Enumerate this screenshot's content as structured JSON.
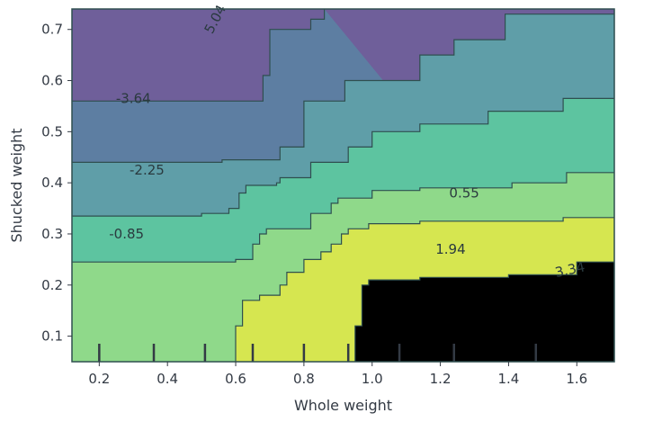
{
  "chart_data": {
    "type": "contour",
    "title": "",
    "xlabel": "Whole weight",
    "ylabel": "Shucked weight",
    "xlim": [
      0.12,
      1.71
    ],
    "ylim": [
      0.05,
      0.74
    ],
    "x_ticks": [
      0.2,
      0.4,
      0.6,
      0.8,
      1.0,
      1.2,
      1.4,
      1.6
    ],
    "x_tick_labels": [
      "0.2",
      "0.4",
      "0.6",
      "0.8",
      "1.0",
      "1.2",
      "1.4",
      "1.6"
    ],
    "y_ticks": [
      0.1,
      0.2,
      0.3,
      0.4,
      0.5,
      0.6,
      0.7
    ],
    "y_tick_labels": [
      "0.1",
      "0.2",
      "0.3",
      "0.4",
      "0.5",
      "0.6",
      "0.7"
    ],
    "deciles_x": [
      0.2,
      0.36,
      0.51,
      0.65,
      0.8,
      0.93,
      1.08,
      1.24,
      1.48
    ],
    "colors": [
      "#6f5f9a",
      "#5d7ea2",
      "#5f9ea8",
      "#5dc4a0",
      "#8fd98a",
      "#d6e650"
    ],
    "contour_levels": [
      {
        "label": "-3.64",
        "x": 0.3,
        "y": 0.565
      },
      {
        "label": "-2.25",
        "x": 0.34,
        "y": 0.425
      },
      {
        "label": "-0.85",
        "x": 0.28,
        "y": 0.3
      },
      {
        "label": "0.55",
        "x": 1.27,
        "y": 0.38
      },
      {
        "label": "1.94",
        "x": 1.23,
        "y": 0.27
      },
      {
        "label": "3.34",
        "x": 1.58,
        "y": 0.23
      },
      {
        "label": "5.04",
        "x": 0.54,
        "y": 0.72
      }
    ]
  }
}
